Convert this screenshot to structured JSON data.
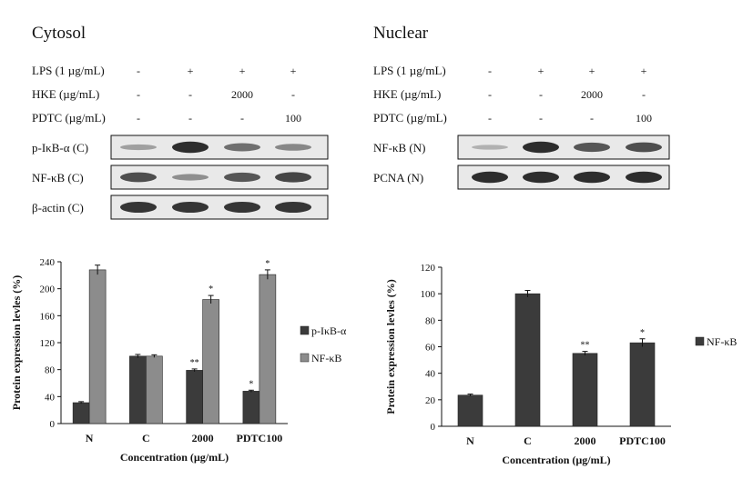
{
  "colors": {
    "dark_bar": "#3b3b3b",
    "light_bar": "#8c8c8c",
    "band_dark": "#1a1a1a",
    "blot_bg": "#e9e9e9"
  },
  "cytosol": {
    "title": "Cytosol",
    "conditions": [
      {
        "label": "LPS (1 µg/mL)",
        "values": [
          "-",
          "+",
          "+",
          "+"
        ]
      },
      {
        "label": "HKE (µg/mL)",
        "values": [
          "-",
          "-",
          "2000",
          "-"
        ]
      },
      {
        "label": "PDTC (µg/mL)",
        "values": [
          "-",
          "-",
          "-",
          "100"
        ]
      }
    ],
    "blots": [
      {
        "label": "p-IκB-α (C)",
        "intensity": [
          0.25,
          0.95,
          0.55,
          0.4
        ]
      },
      {
        "label": "NF-κB (C)",
        "intensity": [
          0.75,
          0.35,
          0.7,
          0.8
        ]
      },
      {
        "label": "β-actin (C)",
        "intensity": [
          0.9,
          0.9,
          0.9,
          0.9
        ]
      }
    ]
  },
  "nuclear": {
    "title": "Nuclear",
    "conditions": [
      {
        "label": "LPS (1 µg/mL)",
        "values": [
          "-",
          "+",
          "+",
          "+"
        ]
      },
      {
        "label": "HKE (µg/mL)",
        "values": [
          "-",
          "-",
          "2000",
          "-"
        ]
      },
      {
        "label": "PDTC (µg/mL)",
        "values": [
          "-",
          "-",
          "-",
          "100"
        ]
      }
    ],
    "blots": [
      {
        "label": "NF-κB (N)",
        "intensity": [
          0.15,
          0.95,
          0.7,
          0.75
        ]
      },
      {
        "label": "PCNA (N)",
        "intensity": [
          0.95,
          0.95,
          0.95,
          0.95
        ]
      }
    ]
  },
  "chart_data": [
    {
      "type": "bar",
      "categories": [
        "N",
        "C",
        "2000",
        "PDTC100"
      ],
      "series": [
        {
          "name": "p-IκB-α",
          "values": [
            31,
            100,
            79,
            48
          ],
          "errors": [
            1.5,
            2.5,
            2,
            1.5
          ],
          "marks": [
            "",
            "",
            "**",
            "*"
          ]
        },
        {
          "name": "NF-κB",
          "values": [
            228,
            100,
            184,
            221
          ],
          "errors": [
            7,
            2,
            6,
            7
          ],
          "marks": [
            "",
            "",
            "*",
            "*"
          ]
        }
      ],
      "xlabel": "Concentration (µg/mL)",
      "ylabel": "Protein expression levles (%)",
      "ylim": [
        0,
        240
      ],
      "yticks": [
        0,
        40,
        80,
        120,
        160,
        200,
        240
      ],
      "legend": "right"
    },
    {
      "type": "bar",
      "categories": [
        "N",
        "C",
        "2000",
        "PDTC100"
      ],
      "series": [
        {
          "name": "NF-κB",
          "values": [
            23.5,
            100,
            55,
            63
          ],
          "errors": [
            0.8,
            2.5,
            1.5,
            3
          ],
          "marks": [
            "",
            "",
            "**",
            "*"
          ]
        }
      ],
      "xlabel": "Concentration (µg/mL)",
      "ylabel": "Protein expression levles (%)",
      "ylim": [
        0,
        120
      ],
      "yticks": [
        0,
        20,
        40,
        60,
        80,
        100,
        120
      ],
      "legend": "right"
    }
  ]
}
